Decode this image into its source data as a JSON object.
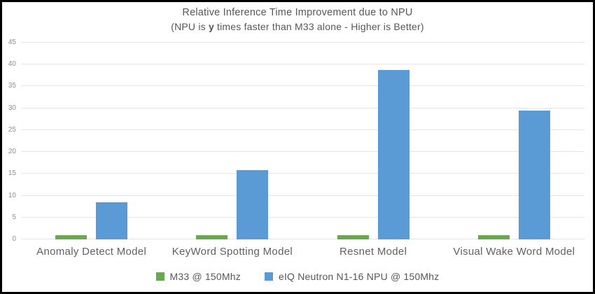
{
  "chart_data": {
    "type": "bar",
    "title": "Relative Inference Time Improvement due to NPU",
    "subtitle_prefix": "(NPU is ",
    "subtitle_bold": "y",
    "subtitle_suffix": " times faster than M33 alone - Higher is Better)",
    "categories": [
      "Anomaly Detect Model",
      "KeyWord Spotting Model",
      "Resnet Model",
      "Visual Wake Word Model"
    ],
    "series": [
      {
        "name": "M33 @ 150Mhz",
        "color": "#69a84f",
        "values": [
          1,
          1,
          1,
          1
        ]
      },
      {
        "name": "eIQ Neutron N1-16 NPU @ 150Mhz",
        "color": "#5b9bd5",
        "values": [
          8.5,
          15.8,
          38.8,
          29.4
        ]
      }
    ],
    "ylim": [
      0,
      45
    ],
    "yticks": [
      0,
      5,
      10,
      15,
      20,
      25,
      30,
      35,
      40,
      45
    ],
    "grid": "horizontal",
    "legend_position": "bottom"
  },
  "colors": {
    "frame_border": "#000000",
    "background": "#ffffff",
    "gridline": "#e4e4e4",
    "title_text": "#575757",
    "tick_text": "#8f8f8f",
    "category_text": "#616161"
  }
}
